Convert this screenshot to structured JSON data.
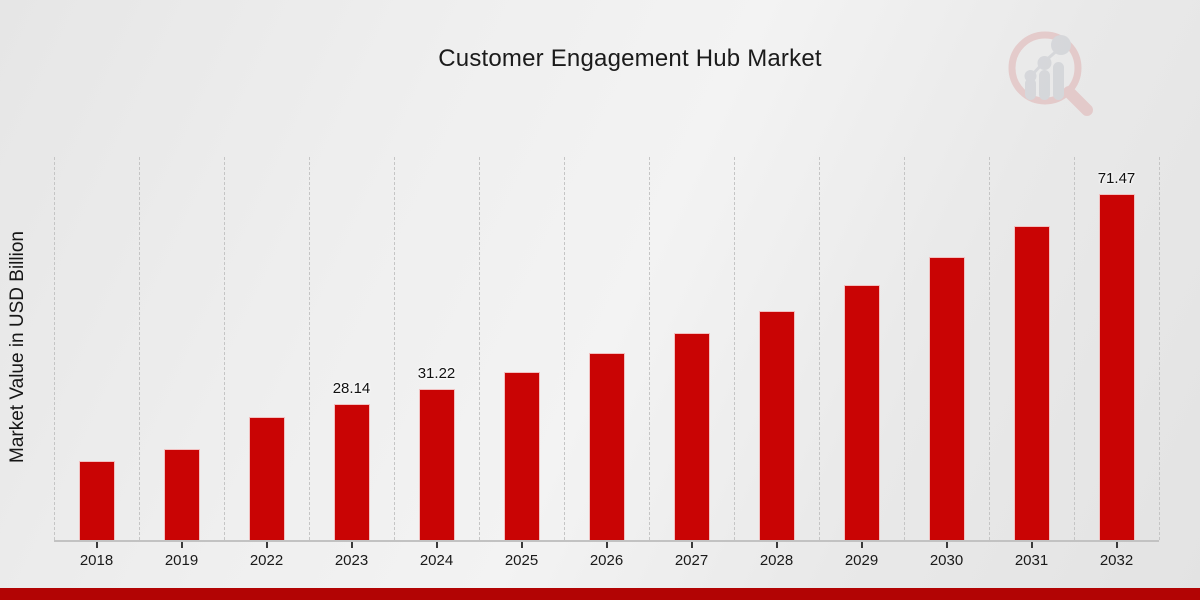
{
  "chart_data": {
    "type": "bar",
    "title": "Customer Engagement Hub Market",
    "xlabel": "",
    "ylabel": "Market Value in USD Billion",
    "categories": [
      "2018",
      "2019",
      "2022",
      "2023",
      "2024",
      "2025",
      "2026",
      "2027",
      "2028",
      "2029",
      "2030",
      "2031",
      "2032"
    ],
    "values": [
      16.2,
      18.7,
      25.3,
      28.14,
      31.22,
      34.7,
      38.5,
      42.7,
      47.3,
      52.6,
      58.3,
      64.7,
      71.47
    ],
    "data_labels": [
      "",
      "",
      "",
      "28.14",
      "31.22",
      "",
      "",
      "",
      "",
      "",
      "",
      "",
      "71.47"
    ],
    "ylim": [
      0,
      79
    ],
    "grid": "vertical dashed lines between categories",
    "legend_position": "none",
    "bar_color": "#c90404",
    "bar_edge_color": "#ffffff"
  },
  "footer": {
    "accent_color": "#b20404"
  },
  "branding": {
    "logo_icon": "magnifier-bar-chart-watermark"
  }
}
